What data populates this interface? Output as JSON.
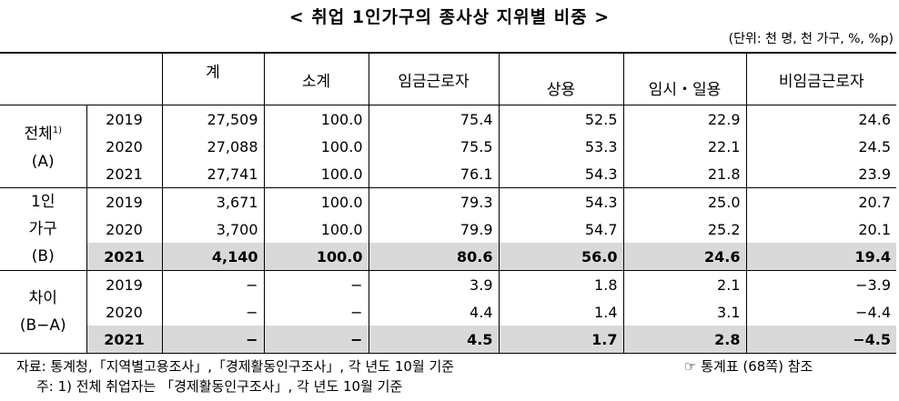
{
  "title": "< 취업 1인가구의 종사상 지위별 비중 >",
  "unit": "(단위: 천 명, 천 가구, %, %p)",
  "header": [
    "계",
    "소계",
    "임금근로자",
    "상용",
    "임시・일용",
    "비임금근로자"
  ],
  "groups": [
    {
      "label": [
        "전체",
        "(A)"
      ],
      "note": "1)",
      "rows": [
        {
          "cells": [
            "2019",
            "27,509",
            "100.0",
            "75.4",
            "52.5",
            "22.9",
            "24.6"
          ],
          "highlight": false
        },
        {
          "cells": [
            "2020",
            "27,088",
            "100.0",
            "75.5",
            "53.3",
            "22.1",
            "24.5"
          ],
          "highlight": false
        },
        {
          "cells": [
            "2021",
            "27,741",
            "100.0",
            "76.1",
            "54.3",
            "21.8",
            "23.9"
          ],
          "highlight": false
        }
      ]
    },
    {
      "label": [
        "1인",
        "가구",
        "(B)"
      ],
      "rows": [
        {
          "cells": [
            "2019",
            "3,671",
            "100.0",
            "79.3",
            "54.3",
            "25.0",
            "20.7"
          ],
          "highlight": false
        },
        {
          "cells": [
            "2020",
            "3,700",
            "100.0",
            "79.9",
            "54.7",
            "25.2",
            "20.1"
          ],
          "highlight": false
        },
        {
          "cells": [
            "2021",
            "4,140",
            "100.0",
            "80.6",
            "56.0",
            "24.6",
            "19.4"
          ],
          "highlight": true
        }
      ]
    },
    {
      "label": [
        "차이",
        "(B−A)"
      ],
      "rows": [
        {
          "cells": [
            "2019",
            "−",
            "−",
            "3.9",
            "1.8",
            "2.1",
            "−3.9"
          ],
          "highlight": false
        },
        {
          "cells": [
            "2020",
            "−",
            "−",
            "4.4",
            "1.4",
            "3.1",
            "−4.4"
          ],
          "highlight": false
        },
        {
          "cells": [
            "2021",
            "−",
            "−",
            "4.5",
            "1.7",
            "2.8",
            "−4.5"
          ],
          "highlight": true
        }
      ]
    }
  ],
  "footer": {
    "source": "자료: 통계청,「지역별고용조사」,「경제활동인구조사」, 각 년도 10월 기준",
    "reference": "☞ 통계표 (68쪽) 참조",
    "note": "주: 1) 전체 취업자는 「경제활동인구조사」, 각 년도 10월 기준"
  }
}
